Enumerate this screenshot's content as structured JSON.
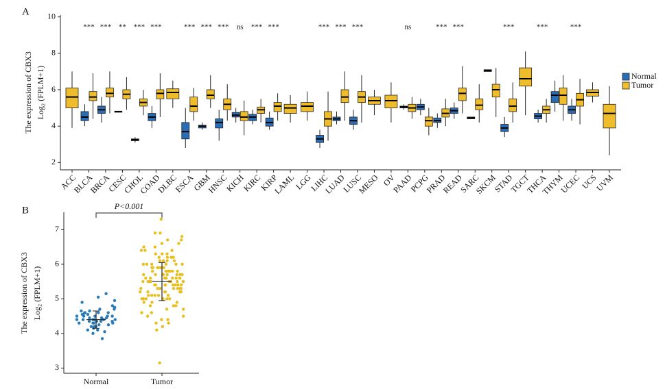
{
  "chart_data": [
    {
      "type": "boxplot",
      "panel": "A",
      "ylabel": "The expression of CBX3",
      "ylabel2": "Log₂ (FPLM+1)",
      "ylim": [
        1.6,
        10.1
      ],
      "yticks": [
        2,
        4,
        6,
        8,
        10
      ],
      "legend": "top-right",
      "categories": [
        "ACC",
        "BLCA",
        "BRCA",
        "CESC",
        "CHOL",
        "COAD",
        "DLBC",
        "ESCA",
        "GBM",
        "HNSC",
        "KICH",
        "KIRC",
        "KIRP",
        "LAML",
        "LGG",
        "LIHC",
        "LUAD",
        "LUSC",
        "MESO",
        "OV",
        "PAAD",
        "PCPG",
        "PRAD",
        "READ",
        "SARC",
        "SKCM",
        "STAD",
        "TGCT",
        "THCA",
        "THYM",
        "UCEC",
        "UCS",
        "UVM"
      ],
      "significance": [
        null,
        "***",
        "***",
        "**",
        "***",
        "***",
        null,
        "***",
        "***",
        "***",
        "ns",
        "***",
        "***",
        null,
        null,
        "***",
        "***",
        "***",
        null,
        null,
        "ns",
        null,
        "***",
        "***",
        null,
        null,
        "***",
        null,
        "***",
        null,
        "***",
        null,
        null
      ],
      "series": [
        {
          "name": "Normal",
          "color": "#2a6db5",
          "values": [
            null,
            [
              4.0,
              4.3,
              4.5,
              4.8,
              5.2
            ],
            [
              4.2,
              4.7,
              4.9,
              5.1,
              5.6
            ],
            [
              4.8,
              4.8,
              4.8,
              4.8,
              4.8
            ],
            [
              3.1,
              3.2,
              3.25,
              3.3,
              3.4
            ],
            [
              3.9,
              4.3,
              4.5,
              4.7,
              5.1
            ],
            null,
            [
              2.8,
              3.3,
              3.7,
              4.2,
              5.0
            ],
            [
              3.8,
              3.9,
              4.0,
              4.05,
              4.2
            ],
            [
              3.2,
              3.9,
              4.2,
              4.4,
              4.9
            ],
            [
              4.2,
              4.5,
              4.6,
              4.75,
              5.0
            ],
            [
              4.1,
              4.3,
              4.5,
              4.65,
              4.9
            ],
            [
              3.8,
              4.0,
              4.2,
              4.45,
              4.8
            ],
            null,
            null,
            [
              2.8,
              3.1,
              3.3,
              3.5,
              3.8
            ],
            [
              4.1,
              4.3,
              4.4,
              4.5,
              4.8
            ],
            [
              3.8,
              4.1,
              4.3,
              4.5,
              4.9
            ],
            null,
            null,
            [
              4.9,
              5.0,
              5.05,
              5.1,
              5.2
            ],
            [
              4.6,
              4.9,
              5.05,
              5.2,
              5.5
            ],
            [
              3.9,
              4.2,
              4.3,
              4.45,
              4.7
            ],
            [
              4.4,
              4.7,
              4.85,
              5.0,
              5.3
            ],
            [
              4.4,
              4.4,
              4.45,
              4.5,
              4.5
            ],
            [
              7.0,
              7.0,
              7.05,
              7.1,
              7.1
            ],
            [
              3.4,
              3.7,
              3.9,
              4.1,
              4.5
            ],
            null,
            [
              4.2,
              4.4,
              4.55,
              4.7,
              4.9
            ],
            [
              4.8,
              5.3,
              5.7,
              5.9,
              6.5
            ],
            [
              4.3,
              4.7,
              4.9,
              5.1,
              5.5
            ],
            null,
            null
          ]
        },
        {
          "name": "Tumor",
          "color": "#efbd2c",
          "values": [
            [
              3.9,
              5.0,
              5.6,
              6.1,
              7.0
            ],
            [
              4.4,
              5.4,
              5.6,
              5.9,
              6.9
            ],
            [
              4.7,
              5.6,
              5.8,
              6.1,
              7.0
            ],
            [
              4.9,
              5.5,
              5.75,
              6.0,
              6.7
            ],
            [
              4.6,
              5.1,
              5.3,
              5.5,
              6.0
            ],
            [
              4.5,
              5.5,
              5.8,
              6.0,
              6.9
            ],
            [
              5.0,
              5.5,
              5.85,
              6.05,
              6.5
            ],
            [
              4.3,
              4.8,
              5.1,
              5.6,
              6.1
            ],
            [
              5.0,
              5.5,
              5.7,
              6.0,
              6.8
            ],
            [
              4.3,
              4.9,
              5.2,
              5.5,
              6.3
            ],
            [
              3.5,
              4.3,
              4.5,
              4.8,
              5.4
            ],
            [
              4.2,
              4.7,
              4.9,
              5.05,
              5.5
            ],
            [
              4.3,
              4.8,
              5.1,
              5.3,
              5.8
            ],
            [
              4.2,
              4.7,
              5.0,
              5.2,
              5.7
            ],
            [
              4.3,
              4.8,
              5.1,
              5.3,
              5.9
            ],
            [
              3.2,
              4.0,
              4.4,
              4.8,
              5.9
            ],
            [
              4.3,
              5.3,
              5.6,
              6.0,
              7.0
            ],
            [
              4.2,
              5.3,
              5.6,
              5.9,
              6.8
            ],
            [
              4.6,
              5.2,
              5.4,
              5.6,
              6.0
            ],
            [
              4.2,
              5.0,
              5.4,
              5.7,
              6.4
            ],
            [
              4.4,
              4.8,
              5.0,
              5.2,
              5.6
            ],
            [
              3.5,
              4.0,
              4.3,
              4.5,
              5.0
            ],
            [
              4.0,
              4.5,
              4.7,
              4.95,
              5.5
            ],
            [
              4.7,
              5.4,
              5.8,
              6.1,
              7.3
            ],
            [
              4.2,
              4.9,
              5.15,
              5.5,
              6.3
            ],
            [
              4.5,
              5.6,
              6.0,
              6.3,
              7.2
            ],
            [
              4.2,
              4.8,
              5.1,
              5.5,
              6.4
            ],
            [
              4.6,
              6.2,
              6.6,
              7.2,
              8.1
            ],
            [
              4.2,
              4.7,
              4.9,
              5.1,
              5.5
            ],
            [
              4.3,
              5.2,
              5.7,
              6.1,
              6.8
            ],
            [
              4.1,
              5.1,
              5.45,
              5.8,
              6.6
            ],
            [
              5.3,
              5.65,
              5.85,
              6.0,
              6.4
            ],
            [
              2.4,
              3.9,
              4.7,
              5.2,
              6.2
            ]
          ]
        }
      ]
    },
    {
      "type": "strip",
      "panel": "B",
      "ylabel": "The expression of CBX3",
      "ylabel2": "Log₂ (FPLM+1)",
      "annotation": "P<0.001",
      "ylim": [
        2.85,
        7.5
      ],
      "yticks": [
        3,
        4,
        5,
        6,
        7
      ],
      "categories": [
        "Normal",
        "Tumor"
      ],
      "series": [
        {
          "name": "Normal",
          "color": "#2a7ab8",
          "mean": 4.4,
          "sd": 0.25,
          "values": [
            4.4,
            4.5,
            4.3,
            4.6,
            4.2,
            4.4,
            4.35,
            4.55,
            4.45,
            4.1,
            4.7,
            4.25,
            4.5,
            4.4,
            4.6,
            4.3,
            4.8,
            4.15,
            4.45,
            4.35,
            5.15,
            5.05,
            3.85,
            4.0,
            4.9,
            4.65,
            4.2,
            4.5,
            4.4,
            4.3,
            4.75,
            4.05,
            4.55,
            4.4,
            4.6,
            4.25,
            4.95,
            4.35,
            4.5,
            4.45,
            4.7,
            4.3,
            4.2,
            4.6,
            4.4,
            4.5,
            4.1,
            4.35,
            4.55,
            4.65
          ]
        },
        {
          "name": "Tumor",
          "color": "#e8bf1e",
          "mean": 5.5,
          "sd": 0.55,
          "values": [
            5.5,
            5.8,
            5.2,
            6.1,
            4.9,
            5.6,
            5.4,
            6.3,
            5.0,
            5.7,
            5.3,
            6.0,
            4.7,
            5.9,
            5.5,
            6.5,
            5.1,
            5.6,
            4.5,
            6.2,
            5.4,
            5.8,
            5.0,
            6.7,
            5.3,
            5.5,
            4.8,
            6.0,
            5.7,
            5.2,
            6.9,
            5.6,
            4.3,
            5.9,
            5.4,
            6.4,
            5.1,
            5.7,
            5.5,
            4.6,
            6.1,
            5.3,
            5.8,
            5.0,
            6.6,
            5.4,
            5.6,
            4.9,
            6.2,
            5.5,
            5.2,
            7.3,
            5.7,
            4.4,
            6.0,
            5.3,
            5.9,
            5.1,
            6.3,
            5.6,
            4.2,
            5.8,
            5.4,
            6.8,
            5.0,
            5.5,
            5.7,
            4.7,
            6.1,
            5.3,
            5.6,
            3.15,
            5.9,
            5.2,
            6.4,
            5.4,
            4.8,
            6.0,
            5.5,
            5.1,
            6.5,
            5.7,
            4.1,
            5.8,
            5.3,
            6.2,
            5.0,
            5.6,
            6.9,
            5.4,
            4.5,
            5.9,
            5.2,
            6.1,
            5.5,
            4.9,
            6.3,
            5.7,
            5.3,
            6.0,
            5.8,
            4.6,
            5.4,
            6.6,
            5.1,
            5.6,
            4.3,
            6.2,
            5.5,
            5.0,
            6.7,
            5.2,
            5.9,
            4.4,
            5.7,
            6.0,
            5.3,
            6.4,
            4.8,
            5.6
          ]
        }
      ]
    }
  ]
}
